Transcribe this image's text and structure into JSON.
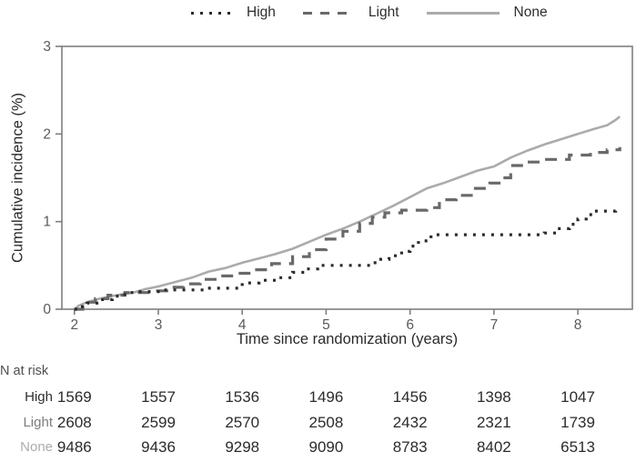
{
  "legend": {
    "items": [
      {
        "label": "High",
        "style": "dotted",
        "color": "#2b2b2b"
      },
      {
        "label": "Light",
        "style": "dashed",
        "color": "#696969"
      },
      {
        "label": "None",
        "style": "solid",
        "color": "#ababab"
      }
    ]
  },
  "chart_data": {
    "type": "line",
    "title": "",
    "xlabel": "Time since randomization (years)",
    "ylabel": "Cumulative incidence (%)",
    "xlim": [
      1.85,
      8.65
    ],
    "ylim": [
      0,
      3
    ],
    "xticks": [
      2,
      3,
      4,
      5,
      6,
      7,
      8
    ],
    "yticks": [
      0,
      1,
      2,
      3
    ],
    "grid": false,
    "legend_position": "top",
    "frame_color": "#7f7f7f",
    "tick_label_color": "#5a5a5a",
    "series": [
      {
        "name": "None",
        "style": "solid",
        "interp": "linear",
        "color": "#ababab",
        "width": 2.6,
        "points": [
          [
            2.0,
            0.0
          ],
          [
            2.05,
            0.04
          ],
          [
            2.15,
            0.08
          ],
          [
            2.3,
            0.12
          ],
          [
            2.5,
            0.16
          ],
          [
            2.7,
            0.19
          ],
          [
            2.85,
            0.23
          ],
          [
            3.0,
            0.26
          ],
          [
            3.2,
            0.31
          ],
          [
            3.4,
            0.36
          ],
          [
            3.6,
            0.43
          ],
          [
            3.8,
            0.47
          ],
          [
            4.0,
            0.53
          ],
          [
            4.2,
            0.58
          ],
          [
            4.4,
            0.63
          ],
          [
            4.6,
            0.69
          ],
          [
            4.8,
            0.77
          ],
          [
            5.0,
            0.85
          ],
          [
            5.2,
            0.92
          ],
          [
            5.4,
            1.0
          ],
          [
            5.6,
            1.09
          ],
          [
            5.8,
            1.18
          ],
          [
            6.0,
            1.28
          ],
          [
            6.2,
            1.38
          ],
          [
            6.4,
            1.44
          ],
          [
            6.6,
            1.51
          ],
          [
            6.8,
            1.58
          ],
          [
            7.0,
            1.63
          ],
          [
            7.2,
            1.73
          ],
          [
            7.4,
            1.81
          ],
          [
            7.6,
            1.88
          ],
          [
            7.8,
            1.94
          ],
          [
            8.0,
            2.0
          ],
          [
            8.2,
            2.06
          ],
          [
            8.35,
            2.1
          ],
          [
            8.45,
            2.16
          ],
          [
            8.5,
            2.2
          ]
        ]
      },
      {
        "name": "Light",
        "style": "dashed",
        "interp": "step",
        "color": "#696969",
        "width": 3.2,
        "points": [
          [
            2.0,
            0.0
          ],
          [
            2.1,
            0.08
          ],
          [
            2.25,
            0.12
          ],
          [
            2.4,
            0.16
          ],
          [
            2.6,
            0.19
          ],
          [
            2.9,
            0.21
          ],
          [
            3.1,
            0.25
          ],
          [
            3.3,
            0.29
          ],
          [
            3.5,
            0.34
          ],
          [
            3.7,
            0.38
          ],
          [
            3.9,
            0.41
          ],
          [
            4.1,
            0.45
          ],
          [
            4.35,
            0.52
          ],
          [
            4.6,
            0.6
          ],
          [
            4.8,
            0.68
          ],
          [
            5.0,
            0.8
          ],
          [
            5.2,
            0.89
          ],
          [
            5.4,
            0.98
          ],
          [
            5.55,
            1.05
          ],
          [
            5.7,
            1.1
          ],
          [
            5.9,
            1.13
          ],
          [
            6.2,
            1.16
          ],
          [
            6.35,
            1.25
          ],
          [
            6.55,
            1.3
          ],
          [
            6.75,
            1.38
          ],
          [
            6.95,
            1.44
          ],
          [
            7.1,
            1.5
          ],
          [
            7.2,
            1.64
          ],
          [
            7.4,
            1.68
          ],
          [
            7.6,
            1.71
          ],
          [
            7.9,
            1.76
          ],
          [
            8.15,
            1.79
          ],
          [
            8.35,
            1.82
          ],
          [
            8.5,
            1.85
          ]
        ]
      },
      {
        "name": "High",
        "style": "dotted",
        "interp": "step",
        "color": "#2b2b2b",
        "width": 3.2,
        "points": [
          [
            2.0,
            0.0
          ],
          [
            2.05,
            0.03
          ],
          [
            2.15,
            0.07
          ],
          [
            2.3,
            0.11
          ],
          [
            2.45,
            0.15
          ],
          [
            2.6,
            0.19
          ],
          [
            2.75,
            0.2
          ],
          [
            3.05,
            0.22
          ],
          [
            3.55,
            0.24
          ],
          [
            4.0,
            0.3
          ],
          [
            4.2,
            0.33
          ],
          [
            4.4,
            0.36
          ],
          [
            4.6,
            0.42
          ],
          [
            4.75,
            0.46
          ],
          [
            4.9,
            0.5
          ],
          [
            5.55,
            0.53
          ],
          [
            5.65,
            0.57
          ],
          [
            5.75,
            0.61
          ],
          [
            5.9,
            0.66
          ],
          [
            6.0,
            0.72
          ],
          [
            6.1,
            0.78
          ],
          [
            6.25,
            0.85
          ],
          [
            7.6,
            0.87
          ],
          [
            7.75,
            0.92
          ],
          [
            7.9,
            0.97
          ],
          [
            8.0,
            1.03
          ],
          [
            8.1,
            1.08
          ],
          [
            8.2,
            1.12
          ],
          [
            8.45,
            1.13
          ]
        ]
      }
    ]
  },
  "risk_table": {
    "title": "N at risk",
    "columns_x_years": [
      2,
      3,
      4,
      5,
      6,
      7,
      8
    ],
    "rows": [
      {
        "label": "High",
        "color": "#2f2f2f",
        "values": [
          "1569",
          "1557",
          "1536",
          "1496",
          "1456",
          "1398",
          "1047"
        ]
      },
      {
        "label": "Light",
        "color": "#7d7d7d",
        "values": [
          "2608",
          "2599",
          "2570",
          "2508",
          "2432",
          "2321",
          "1739"
        ]
      },
      {
        "label": "None",
        "color": "#adadad",
        "values": [
          "9486",
          "9436",
          "9298",
          "9090",
          "8783",
          "8402",
          "6513"
        ]
      }
    ]
  }
}
